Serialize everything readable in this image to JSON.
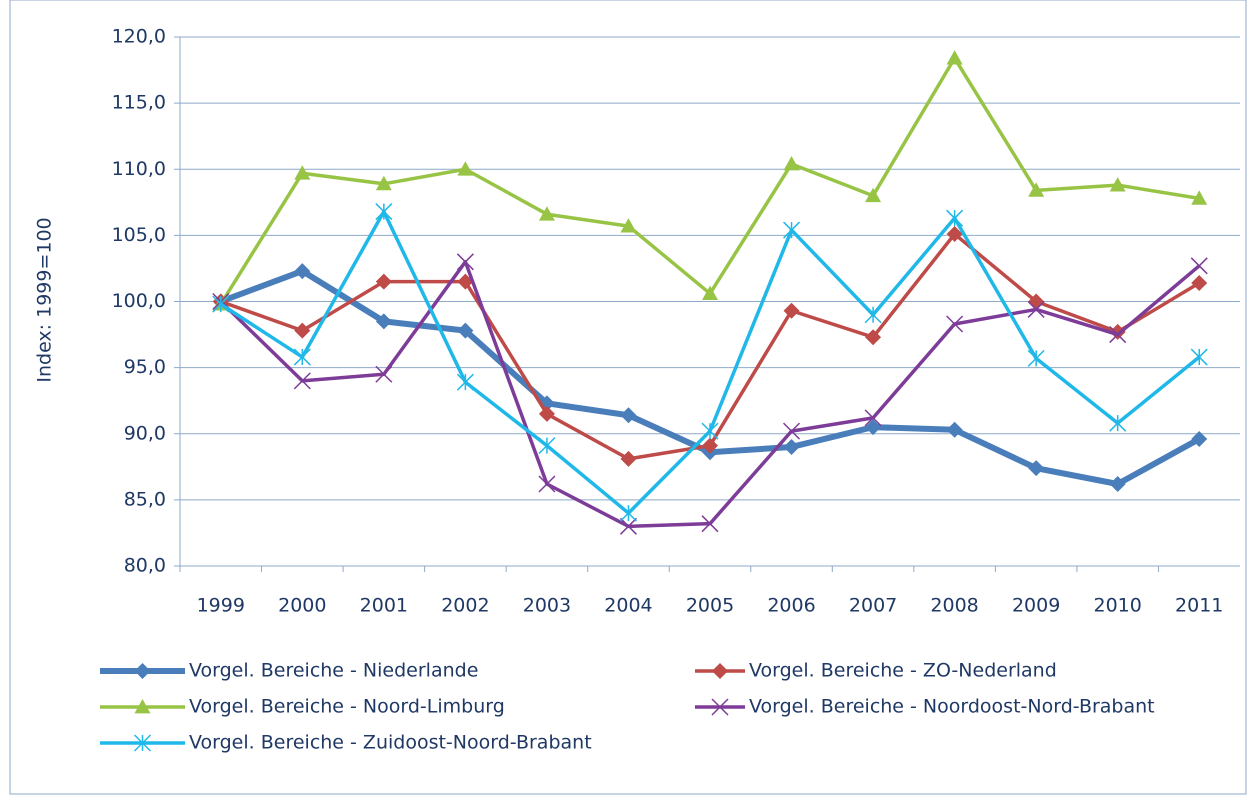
{
  "chart_data": {
    "type": "line",
    "y_label": "Index: 1999=100",
    "categories": [
      "1999",
      "2000",
      "2001",
      "2002",
      "2003",
      "2004",
      "2005",
      "2006",
      "2007",
      "2008",
      "2009",
      "2010",
      "2011"
    ],
    "ylim": [
      80,
      120
    ],
    "yticks": [
      {
        "value": 80,
        "label": "80,0"
      },
      {
        "value": 85,
        "label": "85,0"
      },
      {
        "value": 90,
        "label": "90,0"
      },
      {
        "value": 95,
        "label": "95,0"
      },
      {
        "value": 100,
        "label": "100,0"
      },
      {
        "value": 105,
        "label": "105,0"
      },
      {
        "value": 110,
        "label": "110,0"
      },
      {
        "value": 115,
        "label": "115,0"
      },
      {
        "value": 120,
        "label": "120,0"
      }
    ],
    "grid": true,
    "legend": "bottom",
    "series": [
      {
        "name": "Vorgel. Bereiche - Niederlande",
        "color": "#4a7ebb",
        "marker": "diamond",
        "width": 6,
        "values": [
          100,
          102.3,
          98.5,
          97.8,
          92.3,
          91.4,
          88.6,
          89.0,
          90.5,
          90.3,
          87.4,
          86.2,
          89.6
        ]
      },
      {
        "name": "Vorgel. Bereiche - ZO-Nederland",
        "color": "#be4b48",
        "marker": "diamond",
        "width": 3.5,
        "values": [
          100,
          97.8,
          101.5,
          101.5,
          91.5,
          88.1,
          89.1,
          99.3,
          97.3,
          105.1,
          100.0,
          97.7,
          101.4
        ]
      },
      {
        "name": "Vorgel. Bereiche - Noord-Limburg",
        "color": "#98c446",
        "marker": "triangle",
        "width": 3.5,
        "values": [
          99.8,
          109.7,
          108.9,
          110.0,
          106.6,
          105.7,
          100.6,
          110.4,
          108.0,
          118.4,
          108.4,
          108.8,
          107.8
        ]
      },
      {
        "name": "Vorgel. Bereiche - Noordoost-Nord-Brabant",
        "color": "#7d3c98",
        "marker": "x",
        "width": 3.5,
        "values": [
          100,
          94.0,
          94.5,
          103.0,
          86.2,
          83.0,
          83.2,
          90.2,
          91.2,
          98.3,
          99.4,
          97.5,
          102.7
        ]
      },
      {
        "name": "Vorgel. Bereiche - Zuidoost-Noord-Brabant",
        "color": "#1fb8e8",
        "marker": "star",
        "width": 3.5,
        "values": [
          99.8,
          95.8,
          106.8,
          93.9,
          89.1,
          84.0,
          90.2,
          105.4,
          99.0,
          106.3,
          95.7,
          90.8,
          95.8
        ]
      }
    ]
  }
}
